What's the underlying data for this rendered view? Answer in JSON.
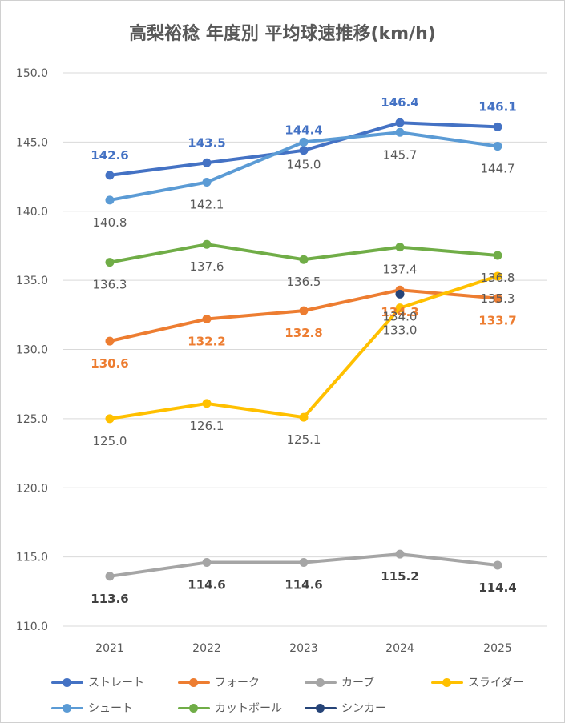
{
  "chart_data": {
    "type": "line",
    "title": "高梨裕稔 年度別 平均球速推移(km/h)",
    "categories": [
      "2021",
      "2022",
      "2023",
      "2024",
      "2025"
    ],
    "ylim": [
      110.0,
      150.0
    ],
    "yticks": [
      "110.0",
      "115.0",
      "120.0",
      "125.0",
      "130.0",
      "135.0",
      "140.0",
      "145.0",
      "150.0"
    ],
    "grid": true,
    "legend_position": "bottom",
    "series": [
      {
        "name": "ストレート",
        "color": "#4472C4",
        "values": [
          142.6,
          143.5,
          144.4,
          146.4,
          146.1
        ],
        "labels": [
          "142.6",
          "143.5",
          "144.4",
          "146.4",
          "146.1"
        ],
        "label_color": "#4472C4",
        "label_bold": true
      },
      {
        "name": "フォーク",
        "color": "#ED7D31",
        "values": [
          130.6,
          132.2,
          132.8,
          134.3,
          133.7
        ],
        "labels": [
          "130.6",
          "132.2",
          "132.8",
          "134.3",
          "133.7"
        ],
        "label_color": "#ED7D31",
        "label_bold": true
      },
      {
        "name": "カーブ",
        "color": "#A5A5A5",
        "values": [
          113.6,
          114.6,
          114.6,
          115.2,
          114.4
        ],
        "labels": [
          "113.6",
          "114.6",
          "114.6",
          "115.2",
          "114.4"
        ],
        "label_color": "#404040",
        "label_bold": true
      },
      {
        "name": "スライダー",
        "color": "#FFC000",
        "values": [
          125.0,
          126.1,
          125.1,
          133.0,
          135.3
        ],
        "labels": [
          "125.0",
          "126.1",
          "125.1",
          "133.0",
          "135.3"
        ],
        "label_color": "#595959",
        "label_bold": false
      },
      {
        "name": "シュート",
        "color": "#5B9BD5",
        "values": [
          140.8,
          142.1,
          145.0,
          145.7,
          144.7
        ],
        "labels": [
          "140.8",
          "142.1",
          "145.0",
          "145.7",
          "144.7"
        ],
        "label_color": "#595959",
        "label_bold": false
      },
      {
        "name": "カットボール",
        "color": "#70AD47",
        "values": [
          136.3,
          137.6,
          136.5,
          137.4,
          136.8
        ],
        "labels": [
          "136.3",
          "137.6",
          "136.5",
          "137.4",
          "136.8"
        ],
        "label_color": "#595959",
        "label_bold": false
      },
      {
        "name": "シンカー",
        "color": "#264478",
        "values": [
          null,
          null,
          null,
          134.0,
          null
        ],
        "labels": [
          "",
          "",
          "",
          "134.0",
          ""
        ],
        "label_color": "#595959",
        "label_bold": false
      }
    ]
  }
}
